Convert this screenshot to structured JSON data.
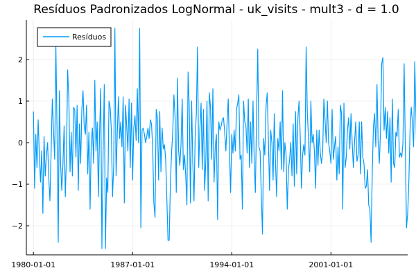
{
  "chart_data": {
    "type": "line",
    "title": "Resíduos Padronizados LogNormal - uk_visits - mult3 - d = 1.0",
    "xlabel": "",
    "ylabel": "",
    "x_tick_labels": [
      "1980-01-01",
      "1987-01-01",
      "1994-01-01",
      "2001-01-01"
    ],
    "x_start": "1980-01-01",
    "x_frequency": "monthly",
    "xlim": [
      "1979-07-01",
      "2006-06-01"
    ],
    "ylim": [
      -2.7,
      2.95
    ],
    "y_ticks": [
      -2,
      -1,
      0,
      1,
      2
    ],
    "y_tick_labels": [
      "−2",
      "−1",
      "0",
      "1",
      "2"
    ],
    "grid": true,
    "legend_position": "top-left",
    "series": [
      {
        "name": "Resíduos",
        "color": "#009AFA",
        "values": [
          0.75,
          -1.1,
          0.2,
          -0.6,
          0.55,
          -0.3,
          -0.95,
          -0.2,
          -1.7,
          0.15,
          -0.8,
          -0.3,
          0.0,
          -0.85,
          -1.4,
          -0.2,
          1.05,
          0.3,
          -0.4,
          2.35,
          0.3,
          -2.4,
          1.25,
          -0.5,
          -1.15,
          -0.5,
          0.4,
          -1.3,
          -0.3,
          1.75,
          1.05,
          -0.7,
          0.25,
          -0.8,
          0.85,
          0.8,
          -0.35,
          0.9,
          -1.15,
          0.45,
          -0.5,
          0.8,
          1.25,
          0.4,
          0.2,
          0.9,
          -0.75,
          0.25,
          -1.6,
          0.05,
          0.35,
          -0.5,
          1.5,
          -0.2,
          0.5,
          -1.3,
          0.2,
          1.3,
          -2.55,
          -0.3,
          1.4,
          -2.55,
          -0.85,
          -1.2,
          1.0,
          0.85,
          0.3,
          -1.3,
          -0.55,
          2.75,
          -0.8,
          0.2,
          1.1,
          0.1,
          0.5,
          -0.1,
          1.1,
          -1.45,
          0.9,
          0.4,
          -0.2,
          1.05,
          -0.6,
          0.95,
          -0.9,
          0.35,
          0.65,
          0.05,
          1.3,
          0.0,
          2.75,
          -2.05,
          0.3,
          0.35,
          0.2,
          0.0,
          0.15,
          0.35,
          0.1,
          0.55,
          0.45,
          -0.1,
          -1.45,
          -1.8,
          0.8,
          0.6,
          -0.9,
          0.75,
          -0.7,
          0.35,
          -0.15,
          -0.05,
          -0.4,
          -1.35,
          -2.35,
          -2.35,
          -1.0,
          -0.25,
          0.25,
          1.15,
          0.6,
          -1.2,
          1.55,
          -0.2,
          -0.55,
          -0.05,
          1.05,
          -0.65,
          -0.3,
          -0.8,
          -1.5,
          1.7,
          0.85,
          -1.45,
          1.0,
          -0.5,
          -1.4,
          0.15,
          0.7,
          2.3,
          -0.6,
          0.35,
          0.95,
          -0.65,
          0.8,
          -1.15,
          -0.45,
          1.0,
          -1.4,
          1.2,
          0.85,
          -0.4,
          1.3,
          -0.95,
          -0.1,
          0.2,
          -1.85,
          0.5,
          0.3,
          0.4,
          0.55,
          0.6,
          0.25,
          -0.2,
          0.45,
          1.05,
          -0.15,
          -1.2,
          0.2,
          -0.25,
          0.3,
          -0.2,
          0.8,
          0.95,
          1.15,
          -0.4,
          -0.3,
          -1.6,
          1.0,
          0.5,
          0.4,
          -0.25,
          1.05,
          -0.6,
          0.5,
          -0.5,
          1.0,
          -0.4,
          -1.2,
          0.65,
          2.25,
          -0.1,
          -0.2,
          -1.25,
          -2.2,
          0.1,
          -0.3,
          0.85,
          1.2,
          0.1,
          -1.15,
          0.3,
          0.0,
          -0.9,
          0.7,
          -0.45,
          -1.3,
          0.1,
          -0.2,
          0.5,
          -0.65,
          1.25,
          -0.7,
          0.0,
          -0.3,
          -1.6,
          -0.65,
          -0.4,
          0.0,
          -0.8,
          0.45,
          -1.05,
          0.75,
          -0.75,
          0.6,
          1.0,
          0.15,
          -1.1,
          -0.3,
          -0.05,
          -0.3,
          2.3,
          0.7,
          0.1,
          -0.7,
          1.0,
          0.0,
          0.2,
          -0.2,
          -1.1,
          0.3,
          -0.55,
          0.3,
          -0.25,
          -0.5,
          -0.2,
          1.05,
          0.55,
          0.0,
          1.0,
          0.0,
          -0.2,
          -0.5,
          0.8,
          -0.4,
          -0.1,
          0.15,
          -0.9,
          -0.1,
          -0.75,
          0.9,
          0.7,
          -1.6,
          0.95,
          -0.6,
          -0.35,
          0.3,
          0.6,
          -0.15,
          0.7,
          0.0,
          -0.6,
          0.0,
          0.5,
          -0.45,
          -0.3,
          0.5,
          -0.75,
          0.5,
          -0.35,
          -0.5,
          -1.1,
          -1.05,
          -0.65,
          -1.5,
          -1.6,
          -2.4,
          -0.7,
          0.4,
          0.7,
          -0.1,
          1.4,
          0.0,
          -0.5,
          0.3,
          1.9,
          2.05,
          0.3,
          0.85,
          0.1,
          0.75,
          -0.25,
          0.6,
          -0.95,
          1.05,
          -0.5,
          -0.6,
          0.25,
          0.15,
          0.8,
          -0.35,
          -0.25,
          -0.35,
          0.0,
          1.9,
          -0.1,
          -2.05,
          -1.7,
          -0.95,
          0.3,
          0.85,
          0.5,
          -0.1,
          1.95,
          0.65,
          -0.95,
          0.3,
          1.55,
          -0.2,
          0.0,
          -0.35,
          0.15,
          -0.45,
          -0.1,
          -0.65,
          0.3,
          -0.3,
          -0.1,
          0.25,
          1.75,
          0.15,
          1.0,
          0.75,
          -0.45,
          1.6,
          0.2,
          0.0,
          0.55,
          2.8,
          0.25,
          -0.8,
          0.5,
          0.2,
          -0.55,
          -1.25,
          1.5,
          -0.55,
          0.1,
          -0.7,
          -0.8,
          -1.1,
          -0.2,
          1.65,
          0.15,
          0.45
        ]
      }
    ]
  }
}
